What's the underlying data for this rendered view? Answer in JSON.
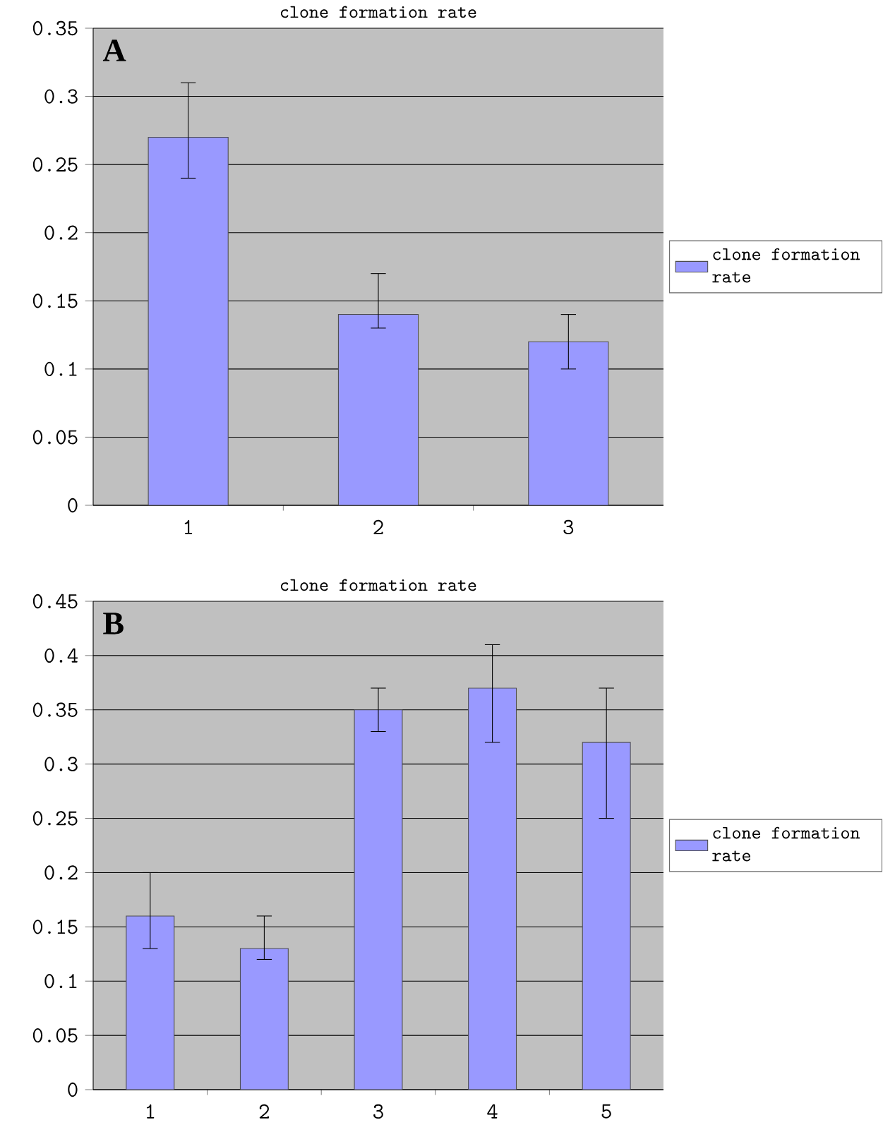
{
  "chart_data": [
    {
      "type": "bar",
      "title": "clone formation rate",
      "annotations": [
        "A"
      ],
      "categories": [
        "1",
        "2",
        "3"
      ],
      "ylim": [
        0,
        0.35
      ],
      "yticks": [
        0,
        0.05,
        0.1,
        0.15,
        0.2,
        0.25,
        0.3,
        0.35
      ],
      "grid": "y",
      "legend": "right",
      "series": [
        {
          "name": "clone formation rate",
          "color": "#9999ff",
          "values": [
            0.27,
            0.14,
            0.12
          ],
          "errors": [
            [
              0.24,
              0.31
            ],
            [
              0.13,
              0.17
            ],
            [
              0.1,
              0.14
            ]
          ]
        }
      ]
    },
    {
      "type": "bar",
      "title": "clone formation rate",
      "annotations": [
        "B"
      ],
      "categories": [
        "1",
        "2",
        "3",
        "4",
        "5"
      ],
      "ylim": [
        0,
        0.45
      ],
      "yticks": [
        0,
        0.05,
        0.1,
        0.15,
        0.2,
        0.25,
        0.3,
        0.35,
        0.4,
        0.45
      ],
      "grid": "y",
      "legend": "right",
      "series": [
        {
          "name": "clone formation rate",
          "color": "#9999ff",
          "values": [
            0.16,
            0.13,
            0.35,
            0.37,
            0.32
          ],
          "errors": [
            [
              0.13,
              0.2
            ],
            [
              0.12,
              0.16
            ],
            [
              0.33,
              0.37
            ],
            [
              0.32,
              0.41
            ],
            [
              0.25,
              0.37
            ]
          ]
        }
      ]
    }
  ]
}
